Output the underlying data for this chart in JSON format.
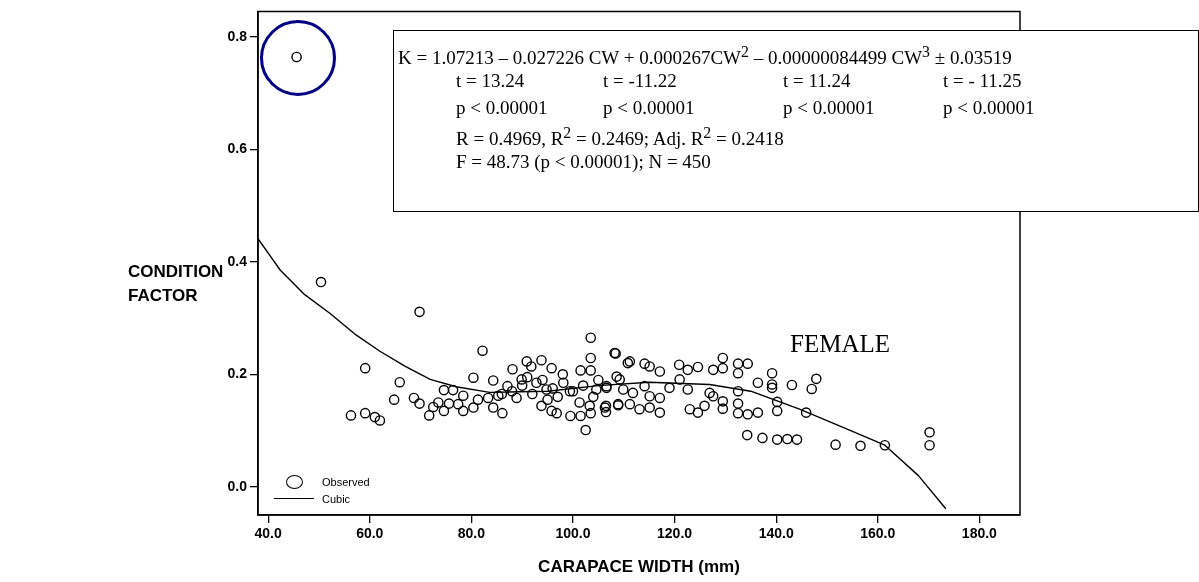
{
  "chart_data": {
    "type": "scatter",
    "xlabel": "CARAPACE WIDTH (mm)",
    "ylabel": "CONDITION FACTOR",
    "xlim": [
      38,
      188
    ],
    "ylim": [
      -0.05,
      0.845
    ],
    "xticks": [
      {
        "value": 40,
        "label": "40.0"
      },
      {
        "value": 60,
        "label": "60.0"
      },
      {
        "value": 80,
        "label": "80.0"
      },
      {
        "value": 100,
        "label": "100.0"
      },
      {
        "value": 120,
        "label": "120.0"
      },
      {
        "value": 140,
        "label": "140.0"
      },
      {
        "value": 160,
        "label": "160.0"
      },
      {
        "value": 180,
        "label": "180.0"
      }
    ],
    "yticks": [
      {
        "value": 0,
        "label": "0.0"
      },
      0.2,
      0.4,
      0.6,
      0.8
    ],
    "grid": false,
    "legend": "bottom left",
    "series": [
      {
        "name": "Observed",
        "type": "scatter",
        "marker": "circle",
        "color": "#000000",
        "x": [
          45.6,
          50.4,
          69.8,
          59.1,
          56.3,
          59.1,
          61.0,
          62.0,
          65.9,
          64.8,
          68.7,
          69.8,
          71.7,
          72.5,
          73.5,
          74.6,
          74.6,
          75.6,
          76.4,
          77.4,
          78.4,
          78.4,
          80.4,
          82.2,
          80.4,
          81.3,
          83.3,
          84.3,
          84.3,
          86.1,
          85.3,
          87.1,
          88.1,
          88.9,
          89.9,
          90.9,
          91.8,
          93.8,
          95.8,
          92.8,
          94.8,
          93.8,
          95.8,
          96.8,
          98.1,
          99.4,
          99.5,
          101.5,
          102.5,
          103.5,
          103.5,
          103.5,
          101.5,
          101.3,
          103.3,
          103.5,
          104.6,
          106.5,
          106.5,
          108.2,
          108.6,
          108.9,
          110.8,
          106.6,
          109.9,
          108.4,
          111.2,
          114.1,
          115.1,
          117.1,
          120.9,
          122.6,
          124.6,
          127.6,
          129.5,
          132.5,
          134.4,
          129.5,
          132.5,
          139.2,
          136.4,
          139.2,
          139.2,
          143.1,
          147.9,
          147.0,
          132.5,
          129.5,
          132.5,
          129.5,
          132.5,
          134.4,
          136.4,
          140.2,
          140.2,
          145.9,
          134.3,
          137.3,
          140.2,
          142.2,
          144.1,
          151.7,
          156.6,
          161.4,
          170.2,
          170.2,
          106.6,
          106.3,
          108.9,
          111.2,
          113.1,
          115.1,
          117.1,
          117.1,
          115.1,
          111.8,
          119.0,
          122.6,
          123.0,
          124.6,
          125.9,
          126.9,
          127.6,
          121.0,
          114.1,
          109.2,
          88,
          90,
          92,
          94,
          96,
          97,
          98,
          100,
          102,
          104,
          105,
          86,
          91,
          95
        ],
        "values": [
          0.764,
          0.364,
          0.311,
          0.211,
          0.127,
          0.131,
          0.124,
          0.118,
          0.186,
          0.155,
          0.158,
          0.148,
          0.127,
          0.142,
          0.15,
          0.172,
          0.135,
          0.148,
          0.172,
          0.147,
          0.162,
          0.135,
          0.194,
          0.242,
          0.141,
          0.155,
          0.158,
          0.189,
          0.141,
          0.131,
          0.162,
          0.179,
          0.209,
          0.158,
          0.191,
          0.223,
          0.214,
          0.225,
          0.211,
          0.185,
          0.173,
          0.144,
          0.135,
          0.131,
          0.185,
          0.17,
          0.126,
          0.126,
          0.101,
          0.265,
          0.229,
          0.207,
          0.207,
          0.15,
          0.144,
          0.131,
          0.173,
          0.144,
          0.133,
          0.238,
          0.196,
          0.147,
          0.22,
          0.179,
          0.173,
          0.237,
          0.223,
          0.219,
          0.214,
          0.205,
          0.217,
          0.208,
          0.213,
          0.208,
          0.229,
          0.219,
          0.219,
          0.211,
          0.202,
          0.202,
          0.185,
          0.182,
          0.176,
          0.181,
          0.192,
          0.174,
          0.17,
          0.152,
          0.148,
          0.139,
          0.131,
          0.129,
          0.132,
          0.151,
          0.135,
          0.132,
          0.092,
          0.087,
          0.084,
          0.085,
          0.084,
          0.075,
          0.073,
          0.074,
          0.097,
          0.074,
          0.176,
          0.141,
          0.145,
          0.147,
          0.138,
          0.141,
          0.132,
          0.158,
          0.161,
          0.167,
          0.176,
          0.173,
          0.138,
          0.132,
          0.144,
          0.167,
          0.161,
          0.191,
          0.179,
          0.191,
          0.17,
          0.18,
          0.165,
          0.19,
          0.175,
          0.16,
          0.2,
          0.17,
          0.18,
          0.16,
          0.19,
          0.165,
          0.195,
          0.155
        ]
      },
      {
        "name": "Cubic",
        "type": "line",
        "marker": "none",
        "color": "#000000",
        "x": [
          38,
          42.4,
          47,
          52.2,
          57,
          62,
          67,
          71.9,
          77,
          83.6,
          95,
          105,
          115,
          126.9,
          135,
          144.6,
          152,
          161.4,
          168,
          173.4
        ],
        "values": [
          0.441,
          0.385,
          0.343,
          0.308,
          0.272,
          0.241,
          0.214,
          0.191,
          0.178,
          0.168,
          0.17,
          0.18,
          0.186,
          0.182,
          0.17,
          0.138,
          0.11,
          0.074,
          0.02,
          -0.039
        ]
      }
    ],
    "annotations": [
      "K = 1.07213 – 0.027226 CW + 0.000267CW$^{2}$ – 0.00000084499 CW$^{3}$ ± 0.03519",
      "t = 13.24   t = -11.22   t = 11.24   t = - 11.25",
      "p < 0.00001   p < 0.00001   p < 0.00001   p < 0.00001",
      "R = 0.4969, R$^{2}$ = 0.2469; Adj. R$^{2}$ = 0.2418",
      "F = 48.73 (p < 0.00001); N = 450",
      "FEMALE"
    ]
  }
}
